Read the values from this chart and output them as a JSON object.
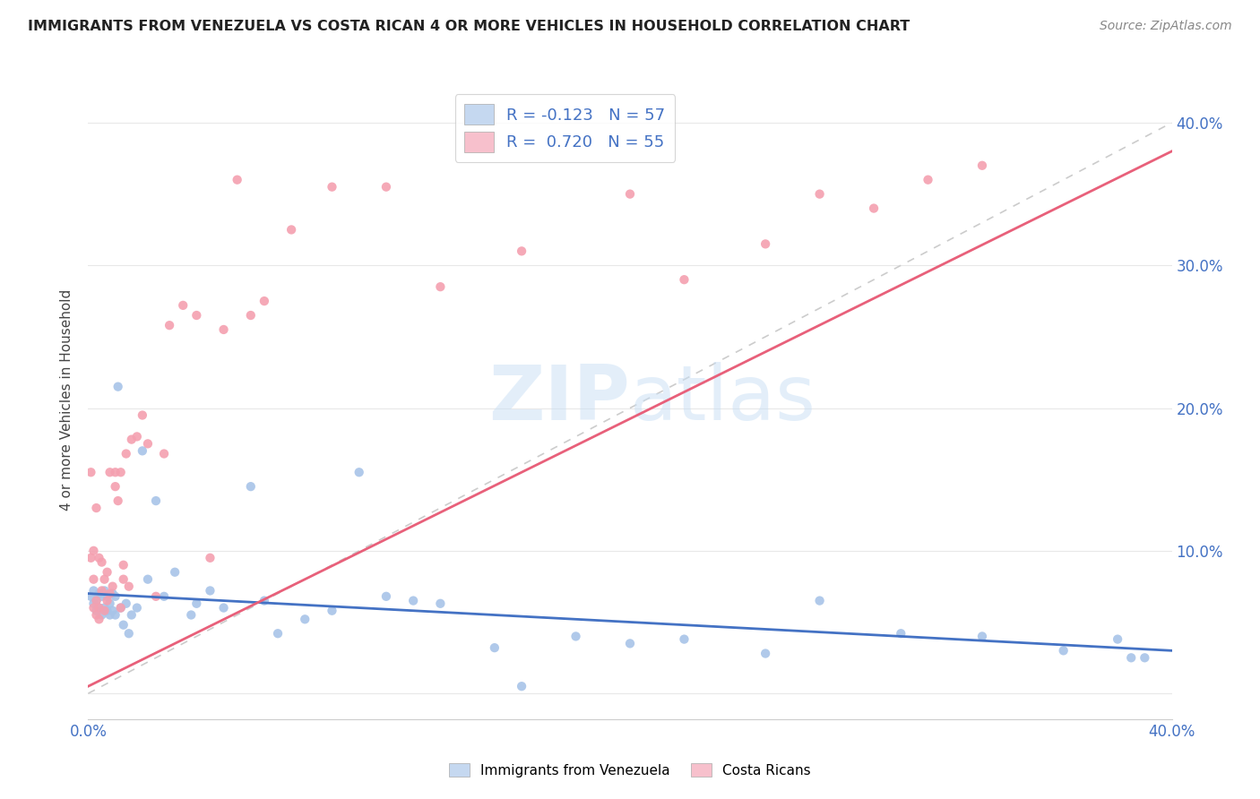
{
  "title": "IMMIGRANTS FROM VENEZUELA VS COSTA RICAN 4 OR MORE VEHICLES IN HOUSEHOLD CORRELATION CHART",
  "source": "Source: ZipAtlas.com",
  "ylabel": "4 or more Vehicles in Household",
  "xlim": [
    0.0,
    0.4
  ],
  "ylim": [
    -0.018,
    0.43
  ],
  "blue_color": "#a8c4e8",
  "pink_color": "#f4a0b0",
  "blue_line_color": "#4472c4",
  "pink_line_color": "#e8607a",
  "diag_color": "#cccccc",
  "background_color": "#ffffff",
  "grid_color": "#e8e8e8",
  "watermark": "ZIPatlas",
  "watermark_color": "#ddeeff",
  "blue_x": [
    0.001,
    0.002,
    0.002,
    0.003,
    0.003,
    0.004,
    0.004,
    0.005,
    0.005,
    0.006,
    0.006,
    0.007,
    0.007,
    0.008,
    0.008,
    0.009,
    0.009,
    0.01,
    0.01,
    0.011,
    0.012,
    0.013,
    0.014,
    0.015,
    0.016,
    0.018,
    0.02,
    0.022,
    0.025,
    0.028,
    0.032,
    0.038,
    0.04,
    0.045,
    0.05,
    0.06,
    0.065,
    0.07,
    0.08,
    0.09,
    0.1,
    0.11,
    0.12,
    0.13,
    0.15,
    0.16,
    0.18,
    0.2,
    0.22,
    0.25,
    0.27,
    0.3,
    0.33,
    0.36,
    0.38,
    0.385,
    0.39
  ],
  "blue_y": [
    0.068,
    0.063,
    0.072,
    0.065,
    0.058,
    0.07,
    0.06,
    0.068,
    0.055,
    0.072,
    0.06,
    0.068,
    0.058,
    0.063,
    0.055,
    0.07,
    0.058,
    0.068,
    0.055,
    0.215,
    0.06,
    0.048,
    0.063,
    0.042,
    0.055,
    0.06,
    0.17,
    0.08,
    0.135,
    0.068,
    0.085,
    0.055,
    0.063,
    0.072,
    0.06,
    0.145,
    0.065,
    0.042,
    0.052,
    0.058,
    0.155,
    0.068,
    0.065,
    0.063,
    0.032,
    0.005,
    0.04,
    0.035,
    0.038,
    0.028,
    0.065,
    0.042,
    0.04,
    0.03,
    0.038,
    0.025,
    0.025
  ],
  "pink_x": [
    0.001,
    0.001,
    0.002,
    0.002,
    0.003,
    0.003,
    0.004,
    0.004,
    0.005,
    0.005,
    0.006,
    0.006,
    0.007,
    0.007,
    0.008,
    0.008,
    0.009,
    0.01,
    0.01,
    0.011,
    0.012,
    0.012,
    0.013,
    0.013,
    0.014,
    0.015,
    0.016,
    0.018,
    0.02,
    0.022,
    0.025,
    0.028,
    0.03,
    0.035,
    0.04,
    0.045,
    0.05,
    0.055,
    0.06,
    0.065,
    0.075,
    0.09,
    0.11,
    0.13,
    0.16,
    0.2,
    0.22,
    0.25,
    0.27,
    0.29,
    0.31,
    0.33,
    0.002,
    0.003,
    0.004
  ],
  "pink_y": [
    0.155,
    0.095,
    0.1,
    0.08,
    0.13,
    0.065,
    0.095,
    0.06,
    0.092,
    0.072,
    0.08,
    0.058,
    0.085,
    0.065,
    0.155,
    0.07,
    0.075,
    0.155,
    0.145,
    0.135,
    0.06,
    0.155,
    0.09,
    0.08,
    0.168,
    0.075,
    0.178,
    0.18,
    0.195,
    0.175,
    0.068,
    0.168,
    0.258,
    0.272,
    0.265,
    0.095,
    0.255,
    0.36,
    0.265,
    0.275,
    0.325,
    0.355,
    0.355,
    0.285,
    0.31,
    0.35,
    0.29,
    0.315,
    0.35,
    0.34,
    0.36,
    0.37,
    0.06,
    0.055,
    0.052
  ],
  "blue_line_x0": 0.0,
  "blue_line_x1": 0.4,
  "blue_line_y0": 0.07,
  "blue_line_y1": 0.03,
  "pink_line_x0": 0.0,
  "pink_line_x1": 0.4,
  "pink_line_y0": 0.005,
  "pink_line_y1": 0.38,
  "legend_r1": "R = -0.123",
  "legend_n1": "N = 57",
  "legend_r2": "R =  0.720",
  "legend_n2": "N = 55",
  "legend_color1": "#4472c4",
  "legend_color2": "#e8607a",
  "legend_face1": "#c5d8f0",
  "legend_face2": "#f7c0cc",
  "bottom_label1": "Immigrants from Venezuela",
  "bottom_label2": "Costa Ricans",
  "tick_color": "#4472c4",
  "title_color": "#222222",
  "source_color": "#888888"
}
